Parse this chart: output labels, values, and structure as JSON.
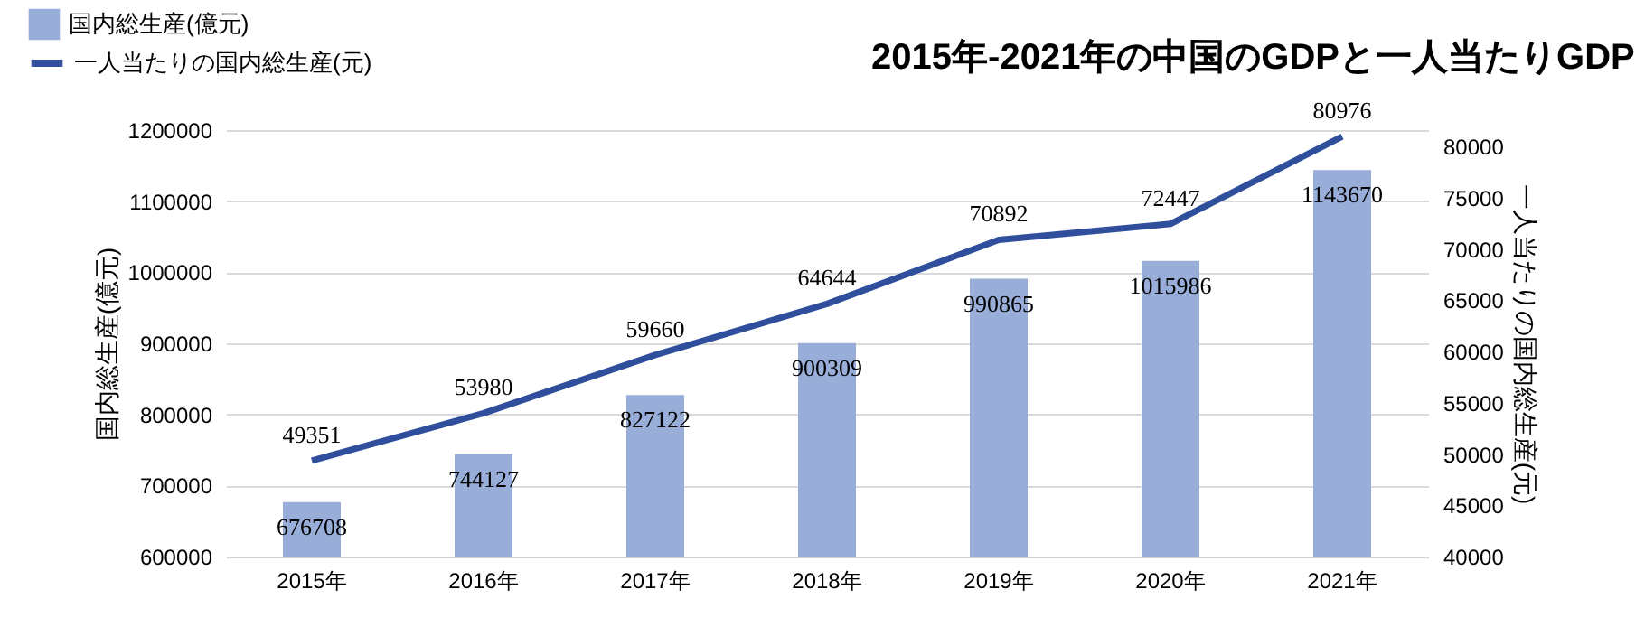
{
  "chart_data": {
    "type": "bar",
    "title": "2015年-2021年の中国のGDPと一人当たりGDP",
    "categories": [
      "2015年",
      "2016年",
      "2017年",
      "2018年",
      "2019年",
      "2020年",
      "2021年"
    ],
    "series": [
      {
        "name": "国内総生産(億元)",
        "type": "bar",
        "color": "#98aed8",
        "values": [
          676708,
          744127,
          827122,
          900309,
          990865,
          1015986,
          1143670
        ]
      },
      {
        "name": "一人当たりの国内総生産(元)",
        "type": "line",
        "axis": "y2",
        "color": "#2f4f9c",
        "values": [
          49351,
          53980,
          59660,
          64644,
          70892,
          72447,
          80976
        ]
      }
    ],
    "ylabel": "国内総生産(億元)",
    "y2label": "一人当たりの国内総生産(元)",
    "ylim": [
      600000,
      1200000
    ],
    "yticks": [
      600000,
      700000,
      800000,
      900000,
      1000000,
      1100000,
      1200000
    ],
    "y2lim": [
      40000,
      81600
    ],
    "y2ticks": [
      40000,
      45000,
      50000,
      55000,
      60000,
      65000,
      70000,
      75000,
      80000
    ],
    "grid": "y",
    "legend": "top left",
    "data_labels": true,
    "marker": "none",
    "line_style": "solid"
  }
}
